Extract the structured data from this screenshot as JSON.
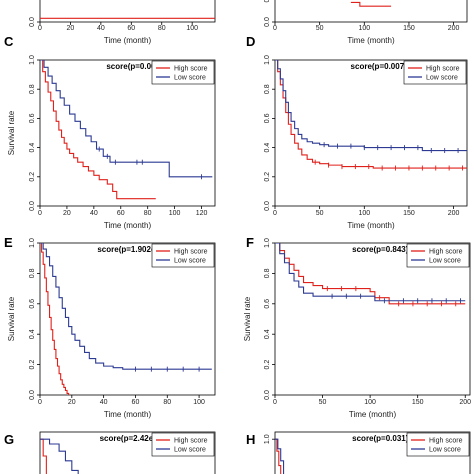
{
  "colors": {
    "high": "#e0201b",
    "low": "#2c3a93"
  },
  "chart_data": [
    {
      "panel": "",
      "type": "line",
      "title": "",
      "xlabel": "Time (month)",
      "ylabel": "",
      "xticks": [
        "0",
        "20",
        "40",
        "60",
        "80",
        "100"
      ],
      "yticks": [
        "0.0"
      ],
      "xlim": [
        0,
        115
      ],
      "ylim": [
        0,
        1
      ],
      "legend": [],
      "series": [
        {
          "color": "high",
          "x": [
            0,
            115
          ],
          "y": [
            0.03,
            0.03
          ]
        }
      ]
    },
    {
      "panel": "",
      "type": "line",
      "title": "",
      "xlabel": "Time (month)",
      "ylabel": "",
      "xticks": [
        "0",
        "50",
        "100",
        "150",
        "200"
      ],
      "yticks": [
        "0.0",
        "0.2"
      ],
      "xlim": [
        0,
        215
      ],
      "ylim": [
        0,
        1
      ],
      "legend": [],
      "series": [
        {
          "color": "high",
          "x": [
            85,
            95,
            130
          ],
          "y": [
            0.16,
            0.13,
            0.13
          ]
        }
      ]
    },
    {
      "panel": "C",
      "type": "line",
      "title": "score(p=0.004)",
      "xlabel": "Time (month)",
      "ylabel": "Survival rate",
      "xticks": [
        "0",
        "20",
        "40",
        "60",
        "80",
        "100",
        "120"
      ],
      "yticks": [
        "0.0",
        "0.2",
        "0.4",
        "0.6",
        "0.8",
        "1.0"
      ],
      "xlim": [
        0,
        130
      ],
      "ylim": [
        0,
        1
      ],
      "legend_position": "top-right",
      "legend": [
        {
          "label": "High score",
          "color": "high"
        },
        {
          "label": "Low score",
          "color": "low"
        }
      ],
      "series": [
        {
          "color": "high",
          "x": [
            0,
            2,
            4,
            6,
            8,
            10,
            12,
            14,
            16,
            18,
            20,
            22,
            25,
            28,
            32,
            36,
            40,
            44,
            50,
            54,
            57,
            86
          ],
          "y": [
            1.0,
            0.92,
            0.85,
            0.78,
            0.72,
            0.65,
            0.58,
            0.52,
            0.47,
            0.43,
            0.39,
            0.36,
            0.33,
            0.3,
            0.27,
            0.24,
            0.21,
            0.18,
            0.15,
            0.1,
            0.05,
            0.05
          ],
          "censor_x": []
        },
        {
          "color": "low",
          "x": [
            0,
            3,
            6,
            9,
            12,
            15,
            18,
            22,
            26,
            30,
            34,
            38,
            42,
            47,
            52,
            60,
            96,
            128
          ],
          "y": [
            1.0,
            0.95,
            0.89,
            0.84,
            0.79,
            0.74,
            0.69,
            0.63,
            0.58,
            0.53,
            0.48,
            0.44,
            0.39,
            0.34,
            0.3,
            0.3,
            0.2,
            0.2
          ],
          "censor_x": [
            44,
            50,
            56,
            72,
            76,
            120
          ]
        }
      ]
    },
    {
      "panel": "D",
      "type": "line",
      "title": "score(p=0.007)",
      "xlabel": "Time (month)",
      "ylabel": "",
      "xticks": [
        "0",
        "50",
        "100",
        "150",
        "200"
      ],
      "yticks": [
        "0.0",
        "0.2",
        "0.4",
        "0.6",
        "0.8",
        "1.0"
      ],
      "xlim": [
        0,
        215
      ],
      "ylim": [
        0,
        1
      ],
      "legend_position": "top-right",
      "legend": [
        {
          "label": "High score",
          "color": "high"
        },
        {
          "label": "Low score",
          "color": "low"
        }
      ],
      "series": [
        {
          "color": "high",
          "x": [
            0,
            3,
            6,
            9,
            12,
            15,
            18,
            22,
            26,
            30,
            36,
            42,
            50,
            60,
            75,
            90,
            110,
            215
          ],
          "y": [
            1.0,
            0.92,
            0.83,
            0.74,
            0.64,
            0.56,
            0.49,
            0.43,
            0.39,
            0.35,
            0.32,
            0.3,
            0.29,
            0.28,
            0.27,
            0.27,
            0.26,
            0.26
          ],
          "censor_x": [
            45,
            60,
            75,
            90,
            105,
            120,
            135,
            150,
            165,
            180,
            195,
            210
          ]
        },
        {
          "color": "low",
          "x": [
            0,
            3,
            6,
            9,
            12,
            15,
            18,
            22,
            26,
            30,
            36,
            42,
            50,
            60,
            75,
            100,
            150,
            165,
            215
          ],
          "y": [
            1.0,
            0.94,
            0.87,
            0.79,
            0.71,
            0.64,
            0.58,
            0.53,
            0.49,
            0.46,
            0.44,
            0.43,
            0.42,
            0.41,
            0.41,
            0.4,
            0.4,
            0.38,
            0.38
          ],
          "censor_x": [
            55,
            70,
            85,
            100,
            115,
            130,
            145,
            160,
            175,
            190,
            205
          ]
        }
      ]
    },
    {
      "panel": "E",
      "type": "line",
      "title": "score(p=1.902e−06)",
      "xlabel": "Time (month)",
      "ylabel": "Survival rate",
      "xticks": [
        "0",
        "20",
        "40",
        "60",
        "80",
        "100"
      ],
      "yticks": [
        "0.0",
        "0.2",
        "0.4",
        "0.6",
        "0.8",
        "1.0"
      ],
      "xlim": [
        0,
        110
      ],
      "ylim": [
        0,
        1
      ],
      "legend_position": "top-right",
      "legend": [
        {
          "label": "High score",
          "color": "high"
        },
        {
          "label": "Low score",
          "color": "low"
        }
      ],
      "series": [
        {
          "color": "high",
          "x": [
            0,
            1,
            2,
            3,
            4,
            5,
            6,
            7,
            8,
            9,
            10,
            11,
            12,
            13,
            14,
            15,
            16,
            17,
            18
          ],
          "y": [
            1.0,
            0.94,
            0.86,
            0.77,
            0.68,
            0.59,
            0.51,
            0.43,
            0.36,
            0.3,
            0.24,
            0.19,
            0.14,
            0.1,
            0.07,
            0.05,
            0.03,
            0.01,
            0.0
          ],
          "censor_x": []
        },
        {
          "color": "low",
          "x": [
            0,
            2,
            4,
            6,
            8,
            10,
            12,
            14,
            16,
            18,
            20,
            22,
            25,
            28,
            31,
            35,
            40,
            46,
            52,
            58,
            108
          ],
          "y": [
            1.0,
            0.96,
            0.91,
            0.85,
            0.78,
            0.71,
            0.64,
            0.57,
            0.51,
            0.45,
            0.4,
            0.36,
            0.32,
            0.28,
            0.24,
            0.21,
            0.19,
            0.18,
            0.17,
            0.17,
            0.17
          ],
          "censor_x": [
            60,
            70,
            80,
            90,
            100
          ]
        }
      ]
    },
    {
      "panel": "F",
      "type": "line",
      "title": "score(p=0.843)",
      "xlabel": "Time (month)",
      "ylabel": "Survival rate",
      "xticks": [
        "0",
        "50",
        "100",
        "150",
        "200"
      ],
      "yticks": [
        "0.0",
        "0.2",
        "0.4",
        "0.6",
        "0.8",
        "1.0"
      ],
      "xlim": [
        0,
        205
      ],
      "ylim": [
        0,
        1
      ],
      "legend_position": "top-right",
      "legend": [
        {
          "label": "High score",
          "color": "high"
        },
        {
          "label": "Low score",
          "color": "low"
        }
      ],
      "series": [
        {
          "color": "high",
          "x": [
            0,
            5,
            10,
            15,
            20,
            25,
            30,
            40,
            50,
            60,
            80,
            100,
            105,
            120,
            160,
            200
          ],
          "y": [
            1.0,
            0.95,
            0.9,
            0.86,
            0.82,
            0.78,
            0.74,
            0.72,
            0.7,
            0.7,
            0.7,
            0.68,
            0.64,
            0.6,
            0.6,
            0.6
          ],
          "censor_x": [
            55,
            70,
            85,
            110,
            130,
            145,
            160,
            175,
            190
          ]
        },
        {
          "color": "low",
          "x": [
            0,
            5,
            10,
            15,
            20,
            25,
            30,
            40,
            60,
            100,
            105,
            140,
            200
          ],
          "y": [
            1.0,
            0.93,
            0.87,
            0.8,
            0.75,
            0.71,
            0.67,
            0.65,
            0.65,
            0.65,
            0.62,
            0.62,
            0.62
          ],
          "censor_x": [
            60,
            75,
            90,
            115,
            135,
            150,
            165,
            180,
            195
          ]
        }
      ]
    },
    {
      "panel": "G",
      "type": "line",
      "title": "score(p=2.42e−08)",
      "xlabel": "",
      "ylabel": "",
      "xticks": [],
      "yticks": [],
      "xlim": [
        0,
        110
      ],
      "ylim": [
        0.78,
        1.03
      ],
      "legend_position": "top-right",
      "legend": [
        {
          "label": "High score",
          "color": "high"
        },
        {
          "label": "Low score",
          "color": "low"
        }
      ],
      "series": [
        {
          "color": "high",
          "x": [
            0,
            2,
            4,
            6
          ],
          "y": [
            1.0,
            0.93,
            0.85,
            0.78
          ],
          "censor_x": []
        },
        {
          "color": "low",
          "x": [
            0,
            6,
            12,
            16,
            20,
            24,
            28
          ],
          "y": [
            1.0,
            0.98,
            0.95,
            0.91,
            0.87,
            0.83,
            0.79
          ],
          "censor_x": []
        }
      ]
    },
    {
      "panel": "H",
      "type": "line",
      "title": "score(p=0.031)",
      "xlabel": "",
      "ylabel": "",
      "xticks": [],
      "yticks": [
        "0.8",
        "1.0"
      ],
      "xlim": [
        0,
        205
      ],
      "ylim": [
        0.78,
        1.03
      ],
      "legend_position": "top-right",
      "legend": [
        {
          "label": "High score",
          "color": "high"
        },
        {
          "label": "Low score",
          "color": "low"
        }
      ],
      "series": [
        {
          "color": "high",
          "x": [
            0,
            2,
            4,
            6,
            8
          ],
          "y": [
            1.0,
            0.95,
            0.89,
            0.83,
            0.78
          ],
          "censor_x": []
        },
        {
          "color": "low",
          "x": [
            0,
            3,
            6,
            9,
            12
          ],
          "y": [
            1.0,
            0.96,
            0.91,
            0.85,
            0.79
          ],
          "censor_x": []
        }
      ]
    }
  ]
}
